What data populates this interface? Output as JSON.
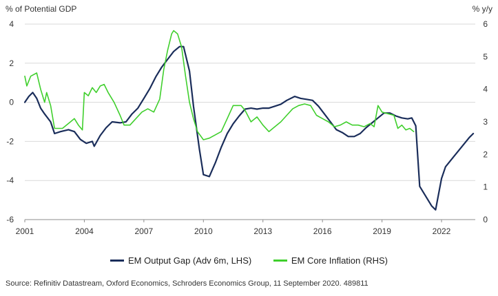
{
  "chart_data": {
    "type": "line",
    "left_axis_label": "% of Potential GDP",
    "right_axis_label": "% y/y",
    "x_ticks": [
      "2001",
      "2004",
      "2007",
      "2010",
      "2013",
      "2016",
      "2019",
      "2022"
    ],
    "xlim": [
      2001.0,
      2023.7
    ],
    "left_ylim": [
      -6,
      4
    ],
    "left_ticks": [
      "4",
      "2",
      "0",
      "-2",
      "-4",
      "-6"
    ],
    "right_ylim": [
      0,
      6
    ],
    "right_ticks": [
      "6",
      "5",
      "4",
      "3",
      "2",
      "1",
      "0"
    ],
    "grid": "horizontal",
    "legend_position": "bottom",
    "series": [
      {
        "name": "EM Output Gap (Adv 6m, LHS)",
        "axis": "left",
        "color": "#1a2d5a",
        "points": [
          [
            2001.0,
            0.0
          ],
          [
            2001.2,
            0.3
          ],
          [
            2001.4,
            0.5
          ],
          [
            2001.6,
            0.2
          ],
          [
            2001.8,
            -0.3
          ],
          [
            2002.0,
            -0.6
          ],
          [
            2002.3,
            -1.0
          ],
          [
            2002.5,
            -1.6
          ],
          [
            2002.8,
            -1.5
          ],
          [
            2003.2,
            -1.4
          ],
          [
            2003.5,
            -1.5
          ],
          [
            2003.8,
            -1.9
          ],
          [
            2004.1,
            -2.1
          ],
          [
            2004.4,
            -2.0
          ],
          [
            2004.5,
            -2.25
          ],
          [
            2004.8,
            -1.7
          ],
          [
            2005.1,
            -1.3
          ],
          [
            2005.4,
            -1.0
          ],
          [
            2005.8,
            -1.05
          ],
          [
            2006.1,
            -1.0
          ],
          [
            2006.4,
            -0.6
          ],
          [
            2006.7,
            -0.3
          ],
          [
            2007.0,
            0.2
          ],
          [
            2007.3,
            0.7
          ],
          [
            2007.6,
            1.3
          ],
          [
            2007.9,
            1.8
          ],
          [
            2008.2,
            2.2
          ],
          [
            2008.5,
            2.6
          ],
          [
            2008.8,
            2.85
          ],
          [
            2009.0,
            2.85
          ],
          [
            2009.3,
            1.6
          ],
          [
            2009.5,
            -0.2
          ],
          [
            2009.8,
            -2.4
          ],
          [
            2010.0,
            -3.7
          ],
          [
            2010.3,
            -3.8
          ],
          [
            2010.6,
            -3.1
          ],
          [
            2010.9,
            -2.3
          ],
          [
            2011.2,
            -1.6
          ],
          [
            2011.5,
            -1.1
          ],
          [
            2011.8,
            -0.7
          ],
          [
            2012.1,
            -0.35
          ],
          [
            2012.4,
            -0.3
          ],
          [
            2012.7,
            -0.35
          ],
          [
            2013.0,
            -0.3
          ],
          [
            2013.3,
            -0.3
          ],
          [
            2013.6,
            -0.2
          ],
          [
            2013.9,
            -0.1
          ],
          [
            2014.2,
            0.1
          ],
          [
            2014.6,
            0.3
          ],
          [
            2014.9,
            0.2
          ],
          [
            2015.2,
            0.15
          ],
          [
            2015.5,
            0.1
          ],
          [
            2015.8,
            -0.2
          ],
          [
            2016.1,
            -0.6
          ],
          [
            2016.4,
            -1.0
          ],
          [
            2016.7,
            -1.4
          ],
          [
            2017.0,
            -1.55
          ],
          [
            2017.3,
            -1.75
          ],
          [
            2017.6,
            -1.75
          ],
          [
            2017.9,
            -1.6
          ],
          [
            2018.2,
            -1.3
          ],
          [
            2018.5,
            -1.05
          ],
          [
            2018.8,
            -0.8
          ],
          [
            2019.1,
            -0.55
          ],
          [
            2019.4,
            -0.55
          ],
          [
            2019.7,
            -0.7
          ],
          [
            2020.0,
            -0.8
          ],
          [
            2020.3,
            -0.85
          ],
          [
            2020.5,
            -0.8
          ],
          [
            2020.7,
            -1.2
          ],
          [
            2020.9,
            -4.3
          ],
          [
            2021.2,
            -4.8
          ],
          [
            2021.5,
            -5.3
          ],
          [
            2021.7,
            -5.5
          ],
          [
            2022.0,
            -3.9
          ],
          [
            2022.2,
            -3.3
          ],
          [
            2022.6,
            -2.8
          ],
          [
            2023.0,
            -2.3
          ],
          [
            2023.4,
            -1.8
          ],
          [
            2023.6,
            -1.6
          ]
        ]
      },
      {
        "name": "EM Core Inflation (RHS)",
        "axis": "right",
        "color": "#3fcf2c",
        "points": [
          [
            2001.0,
            4.4
          ],
          [
            2001.1,
            4.1
          ],
          [
            2001.3,
            4.4
          ],
          [
            2001.6,
            4.5
          ],
          [
            2001.8,
            4.0
          ],
          [
            2002.0,
            3.6
          ],
          [
            2002.1,
            3.9
          ],
          [
            2002.3,
            3.5
          ],
          [
            2002.5,
            2.8
          ],
          [
            2002.7,
            2.8
          ],
          [
            2002.9,
            2.8
          ],
          [
            2003.1,
            2.9
          ],
          [
            2003.3,
            3.0
          ],
          [
            2003.5,
            3.1
          ],
          [
            2003.7,
            2.9
          ],
          [
            2003.9,
            2.75
          ],
          [
            2004.0,
            3.9
          ],
          [
            2004.2,
            3.8
          ],
          [
            2004.4,
            4.05
          ],
          [
            2004.6,
            3.9
          ],
          [
            2004.8,
            4.1
          ],
          [
            2005.0,
            4.15
          ],
          [
            2005.2,
            3.9
          ],
          [
            2005.5,
            3.6
          ],
          [
            2005.8,
            3.2
          ],
          [
            2006.0,
            2.9
          ],
          [
            2006.3,
            2.9
          ],
          [
            2006.6,
            3.1
          ],
          [
            2006.9,
            3.3
          ],
          [
            2007.2,
            3.4
          ],
          [
            2007.5,
            3.3
          ],
          [
            2007.8,
            3.7
          ],
          [
            2008.0,
            4.6
          ],
          [
            2008.2,
            5.2
          ],
          [
            2008.4,
            5.7
          ],
          [
            2008.5,
            5.8
          ],
          [
            2008.7,
            5.7
          ],
          [
            2008.9,
            5.3
          ],
          [
            2009.1,
            4.4
          ],
          [
            2009.3,
            3.6
          ],
          [
            2009.5,
            3.1
          ],
          [
            2009.7,
            2.7
          ],
          [
            2010.0,
            2.45
          ],
          [
            2010.3,
            2.5
          ],
          [
            2010.6,
            2.6
          ],
          [
            2010.9,
            2.7
          ],
          [
            2011.2,
            3.1
          ],
          [
            2011.5,
            3.5
          ],
          [
            2011.7,
            3.5
          ],
          [
            2011.9,
            3.5
          ],
          [
            2012.1,
            3.35
          ],
          [
            2012.4,
            3.0
          ],
          [
            2012.7,
            3.15
          ],
          [
            2013.0,
            2.9
          ],
          [
            2013.3,
            2.7
          ],
          [
            2013.6,
            2.85
          ],
          [
            2013.9,
            3.0
          ],
          [
            2014.2,
            3.2
          ],
          [
            2014.5,
            3.4
          ],
          [
            2014.8,
            3.5
          ],
          [
            2015.1,
            3.55
          ],
          [
            2015.4,
            3.5
          ],
          [
            2015.7,
            3.2
          ],
          [
            2016.0,
            3.1
          ],
          [
            2016.3,
            3.0
          ],
          [
            2016.6,
            2.85
          ],
          [
            2016.9,
            2.9
          ],
          [
            2017.2,
            3.0
          ],
          [
            2017.5,
            2.9
          ],
          [
            2017.8,
            2.9
          ],
          [
            2018.1,
            2.85
          ],
          [
            2018.4,
            2.95
          ],
          [
            2018.6,
            2.85
          ],
          [
            2018.8,
            3.5
          ],
          [
            2019.0,
            3.3
          ],
          [
            2019.3,
            3.25
          ],
          [
            2019.6,
            3.2
          ],
          [
            2019.8,
            2.8
          ],
          [
            2020.0,
            2.9
          ],
          [
            2020.2,
            2.75
          ],
          [
            2020.4,
            2.8
          ],
          [
            2020.6,
            2.7
          ]
        ]
      }
    ]
  },
  "source_text": "Source: Refinitiv Datastream, Oxford Economics, Schroders Economics Group, 11 September 2020. 489811"
}
